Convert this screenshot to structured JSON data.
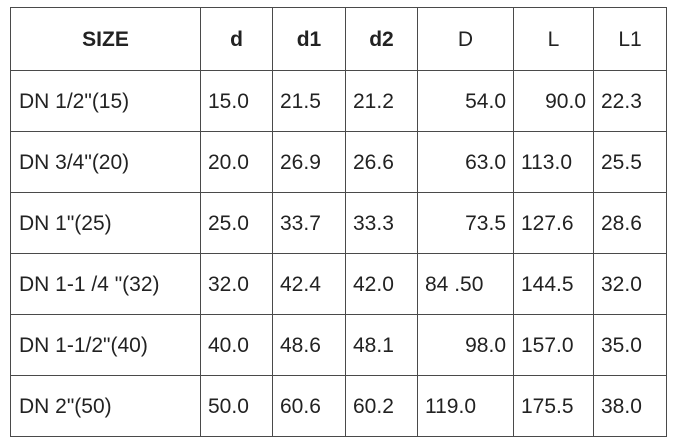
{
  "table": {
    "headers": [
      "SIZE",
      "d",
      "d1",
      "d2",
      "D",
      "L",
      "L1"
    ],
    "rows": [
      [
        "DN 1/2\"(15)",
        "15.0",
        "21.5",
        "21.2",
        "54.0",
        "90.0",
        "22.3"
      ],
      [
        "DN 3/4\"(20)",
        "20.0",
        "26.9",
        "26.6",
        "63.0",
        "113.0",
        "25.5"
      ],
      [
        "DN 1\"(25)",
        "25.0",
        "33.7",
        "33.3",
        "73.5",
        "127.6",
        "28.6"
      ],
      [
        "DN 1-1 /4 \"(32)",
        "32.0",
        "42.4",
        "42.0",
        "84 .50",
        "144.5",
        "32.0"
      ],
      [
        "DN 1-1/2\"(40)",
        "40.0",
        "48.6",
        "48.1",
        "98.0",
        "157.0",
        "35.0"
      ],
      [
        "DN 2\"(50)",
        "50.0",
        "60.6",
        "60.2",
        "119.0",
        "175.5",
        "38.0"
      ]
    ]
  }
}
